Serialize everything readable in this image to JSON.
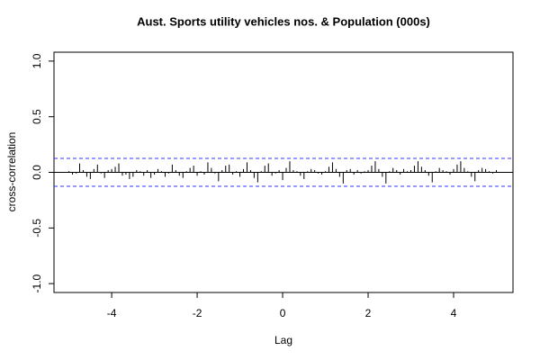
{
  "chart_data": {
    "type": "ccf",
    "title": "Aust. Sports utility vehicles nos.  & Population (000s)",
    "x_label": "Lag",
    "y_label": "cross-correlation",
    "x": [
      -5,
      -4.917,
      -4.833,
      -4.75,
      -4.667,
      -4.583,
      -4.5,
      -4.417,
      -4.333,
      -4.25,
      -4.167,
      -4.083,
      -4,
      -3.917,
      -3.833,
      -3.75,
      -3.667,
      -3.583,
      -3.5,
      -3.417,
      -3.333,
      -3.25,
      -3.167,
      -3.083,
      -3,
      -2.917,
      -2.833,
      -2.75,
      -2.667,
      -2.583,
      -2.5,
      -2.417,
      -2.333,
      -2.25,
      -2.167,
      -2.083,
      -2,
      -1.917,
      -1.833,
      -1.75,
      -1.667,
      -1.583,
      -1.5,
      -1.417,
      -1.333,
      -1.25,
      -1.167,
      -1.083,
      -1,
      -0.917,
      -0.833,
      -0.75,
      -0.667,
      -0.583,
      -0.5,
      -0.417,
      -0.333,
      -0.25,
      -0.167,
      -0.083,
      0,
      0.083,
      0.167,
      0.25,
      0.333,
      0.417,
      0.5,
      0.583,
      0.667,
      0.75,
      0.833,
      0.917,
      1,
      1.083,
      1.167,
      1.25,
      1.333,
      1.417,
      1.5,
      1.583,
      1.667,
      1.75,
      1.833,
      1.917,
      2,
      2.083,
      2.167,
      2.25,
      2.333,
      2.417,
      2.5,
      2.583,
      2.667,
      2.75,
      2.833,
      2.917,
      3,
      3.083,
      3.167,
      3.25,
      3.333,
      3.417,
      3.5,
      3.583,
      3.667,
      3.75,
      3.833,
      3.917,
      4,
      4.083,
      4.167,
      4.25,
      4.333,
      4.417,
      4.5,
      4.583,
      4.667,
      4.75,
      4.833,
      4.917,
      5
    ],
    "values": [
      0.01,
      -0.02,
      -0.01,
      0.08,
      0.02,
      -0.04,
      -0.06,
      0.03,
      0.07,
      -0.01,
      -0.05,
      0.02,
      0.03,
      0.05,
      0.08,
      -0.03,
      -0.02,
      -0.06,
      -0.04,
      0.02,
      0.01,
      -0.03,
      0.02,
      -0.05,
      -0.02,
      0.03,
      0.01,
      -0.04,
      -0.01,
      0.07,
      0.02,
      -0.03,
      -0.05,
      0.01,
      0.04,
      0.06,
      -0.03,
      0.01,
      -0.02,
      0.09,
      0.04,
      -0.01,
      -0.08,
      0.02,
      0.06,
      0.07,
      -0.02,
      0.01,
      -0.04,
      0.03,
      0.09,
      0.02,
      -0.05,
      -0.09,
      0.01,
      0.06,
      0.08,
      -0.03,
      -0.01,
      0.02,
      -0.07,
      0.04,
      0.1,
      0.02,
      0.01,
      -0.03,
      -0.06,
      0.01,
      0.03,
      0.02,
      -0.01,
      -0.02,
      0.01,
      0.05,
      0.09,
      0.03,
      -0.04,
      -0.1,
      0.02,
      0.03,
      -0.02,
      0.02,
      -0.01,
      0.01,
      0.02,
      0.06,
      0.1,
      0.03,
      -0.04,
      -0.1,
      0.01,
      0.04,
      0.02,
      -0.02,
      0.03,
      0.01,
      0.02,
      0.06,
      0.1,
      0.05,
      0.02,
      -0.03,
      -0.09,
      0.01,
      0.04,
      0.02,
      0.01,
      -0.02,
      0.03,
      0.07,
      0.1,
      0.04,
      0.01,
      -0.04,
      -0.08,
      0.02,
      0.04,
      0.03,
      0.01,
      -0.01,
      0.02
    ],
    "color": "#000000",
    "confidence_bound": 0.125,
    "confidence_color": "#3333ff",
    "xlim": [
      -5.35,
      5.39
    ],
    "ylim": [
      -1.08,
      1.08
    ],
    "xticks": [
      -4,
      -2,
      0,
      2,
      4
    ],
    "yticks": [
      {
        "value": -1,
        "label": "-1.0"
      },
      -0.5,
      {
        "value": 0,
        "label": "0.0"
      },
      0.5,
      {
        "value": 1,
        "label": "1.0"
      }
    ]
  }
}
